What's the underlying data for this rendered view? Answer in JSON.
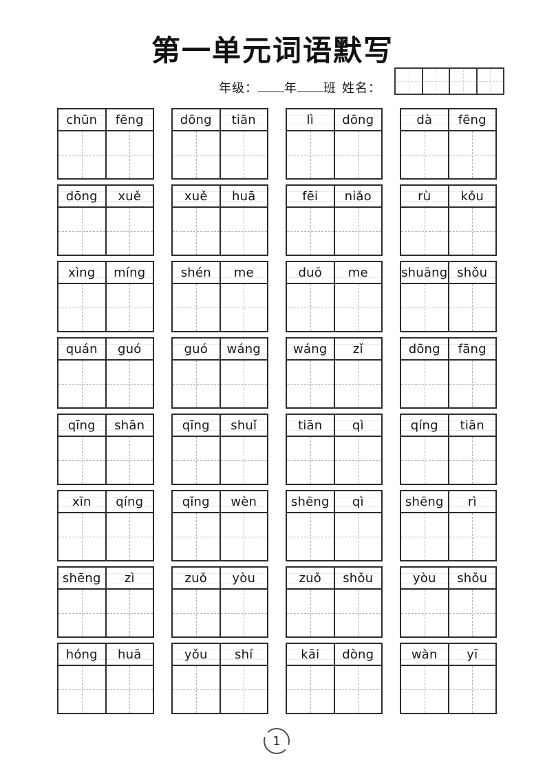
{
  "header": {
    "title": "第一单元词语默写",
    "grade_label": "年级：",
    "year_label": "年",
    "class_label": "班",
    "name_label": "姓名：",
    "score_box_cells": 4
  },
  "footer": {
    "page_number": "1"
  },
  "colors": {
    "border": "#2d2d2d",
    "guide_dash": "#b3b3b3",
    "text": "#161616",
    "background": "#ffffff"
  },
  "words": [
    {
      "syllables": [
        "chūn",
        "fēng"
      ]
    },
    {
      "syllables": [
        "dōng",
        "tiān"
      ]
    },
    {
      "syllables": [
        "lì",
        "dōng"
      ]
    },
    {
      "syllables": [
        "dà",
        "fēng"
      ]
    },
    {
      "syllables": [
        "dōng",
        "xuě"
      ]
    },
    {
      "syllables": [
        "xuě",
        "huā"
      ]
    },
    {
      "syllables": [
        "fēi",
        "niǎo"
      ]
    },
    {
      "syllables": [
        "rù",
        "kǒu"
      ]
    },
    {
      "syllables": [
        "xìng",
        "míng"
      ]
    },
    {
      "syllables": [
        "shén",
        "me"
      ]
    },
    {
      "syllables": [
        "duō",
        "me"
      ]
    },
    {
      "syllables": [
        "shuāng",
        "shǒu"
      ]
    },
    {
      "syllables": [
        "quán",
        "guó"
      ]
    },
    {
      "syllables": [
        "guó",
        "wáng"
      ]
    },
    {
      "syllables": [
        "wáng",
        "zǐ"
      ]
    },
    {
      "syllables": [
        "dōng",
        "fāng"
      ]
    },
    {
      "syllables": [
        "qīng",
        "shān"
      ]
    },
    {
      "syllables": [
        "qīng",
        "shuǐ"
      ]
    },
    {
      "syllables": [
        "tiān",
        "qì"
      ]
    },
    {
      "syllables": [
        "qíng",
        "tiān"
      ]
    },
    {
      "syllables": [
        "xīn",
        "qíng"
      ]
    },
    {
      "syllables": [
        "qǐng",
        "wèn"
      ]
    },
    {
      "syllables": [
        "shēng",
        "qì"
      ]
    },
    {
      "syllables": [
        "shēng",
        "rì"
      ]
    },
    {
      "syllables": [
        "shēng",
        "zì"
      ]
    },
    {
      "syllables": [
        "zuǒ",
        "yòu"
      ]
    },
    {
      "syllables": [
        "zuǒ",
        "shǒu"
      ]
    },
    {
      "syllables": [
        "yòu",
        "shǒu"
      ]
    },
    {
      "syllables": [
        "hóng",
        "huā"
      ]
    },
    {
      "syllables": [
        "yǒu",
        "shí"
      ]
    },
    {
      "syllables": [
        "kāi",
        "dòng"
      ]
    },
    {
      "syllables": [
        "wàn",
        "yī"
      ]
    }
  ]
}
